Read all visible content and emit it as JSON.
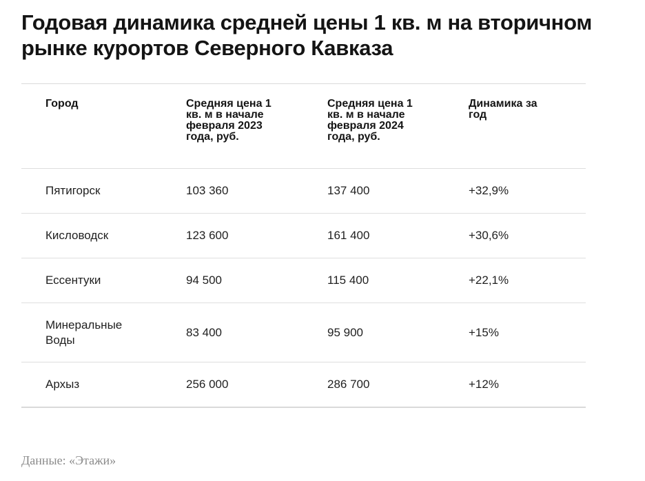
{
  "title": "Годовая динамика средней цены 1 кв. м на вторичном рынке курортов Северного Кавказа",
  "table": {
    "headers": [
      "Город",
      "Средняя цена 1 кв. м в начале февраля 2023 года, руб.",
      "Средняя цена 1 кв. м в начале февраля 2024 года, руб.",
      "Динамика за год"
    ],
    "rows": [
      [
        "Пятигорск",
        "103 360",
        "137 400",
        "+32,9%"
      ],
      [
        "Кисловодск",
        "123 600",
        "161 400",
        "+30,6%"
      ],
      [
        "Ессентуки",
        "94 500",
        "115 400",
        "+22,1%"
      ],
      [
        "Минеральные Воды",
        "83 400",
        "95 900",
        "+15%"
      ],
      [
        "Архыз",
        "256 000",
        "286 700",
        "+12%"
      ]
    ]
  },
  "source": "Данные: «Этажи»"
}
